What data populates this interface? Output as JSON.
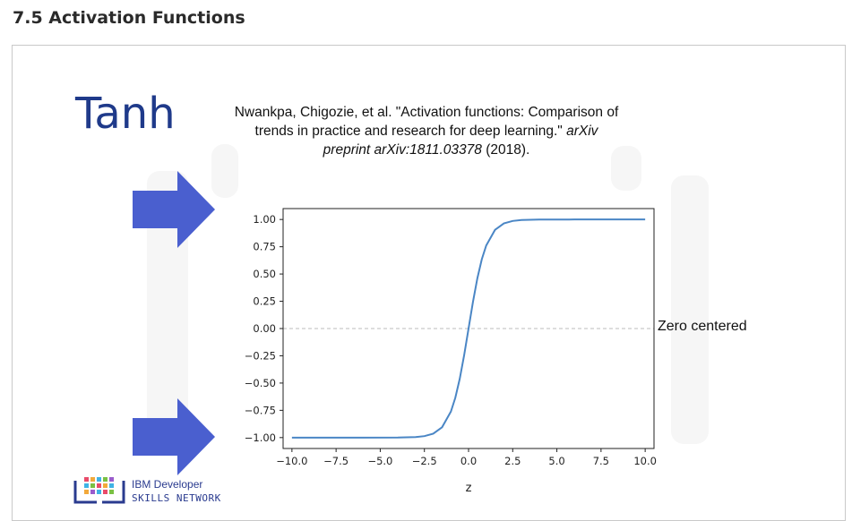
{
  "page": {
    "heading": "7.5 Activation Functions"
  },
  "slide": {
    "title": "Tanh",
    "citation": {
      "line1": "Nwankpa, Chigozie, et al. \"Activation functions: Comparison of",
      "line2_plain": "trends in practice and research for deep learning.\" ",
      "line2_italic": "arXiv",
      "line3_italic": "preprint arXiv:1811.03378",
      "line3_plain": " (2018)."
    },
    "annotation": "Zero centered",
    "arrow_color": "#4a5fcf",
    "logo": {
      "line1": "IBM Developer",
      "line2": "SKILLS NETWORK"
    }
  },
  "chart_data": {
    "type": "line",
    "title": "",
    "xlabel": "z",
    "ylabel": "",
    "xlim": [
      -10.5,
      10.5
    ],
    "ylim": [
      -1.1,
      1.1
    ],
    "x_ticks": [
      -10.0,
      -7.5,
      -5.0,
      -2.5,
      0.0,
      2.5,
      5.0,
      7.5,
      10.0
    ],
    "x_tick_labels": [
      "−10.0",
      "−7.5",
      "−5.0",
      "−2.5",
      "0.0",
      "2.5",
      "5.0",
      "7.5",
      "10.0"
    ],
    "y_ticks": [
      1.0,
      0.75,
      0.5,
      0.25,
      0.0,
      -0.25,
      -0.5,
      -0.75,
      -1.0
    ],
    "y_tick_labels": [
      "1.00",
      "0.75",
      "0.50",
      "0.25",
      "0.00",
      "−0.25",
      "−0.50",
      "−0.75",
      "−1.00"
    ],
    "grid": false,
    "reference_line": {
      "y": 0.0,
      "style": "dashed",
      "color": "#bbbbbb"
    },
    "series": [
      {
        "color": "#4a86c5",
        "x": [
          -10,
          -8,
          -6,
          -4,
          -3,
          -2.5,
          -2,
          -1.5,
          -1,
          -0.75,
          -0.5,
          -0.25,
          0,
          0.25,
          0.5,
          0.75,
          1,
          1.5,
          2,
          2.5,
          3,
          4,
          6,
          8,
          10
        ],
        "y": [
          -1.0,
          -1.0,
          -1.0,
          -0.9993,
          -0.9951,
          -0.9866,
          -0.964,
          -0.9051,
          -0.7616,
          -0.6351,
          -0.4621,
          -0.2449,
          0.0,
          0.2449,
          0.4621,
          0.6351,
          0.7616,
          0.9051,
          0.964,
          0.9866,
          0.9951,
          0.9993,
          1.0,
          1.0,
          1.0
        ]
      }
    ]
  }
}
